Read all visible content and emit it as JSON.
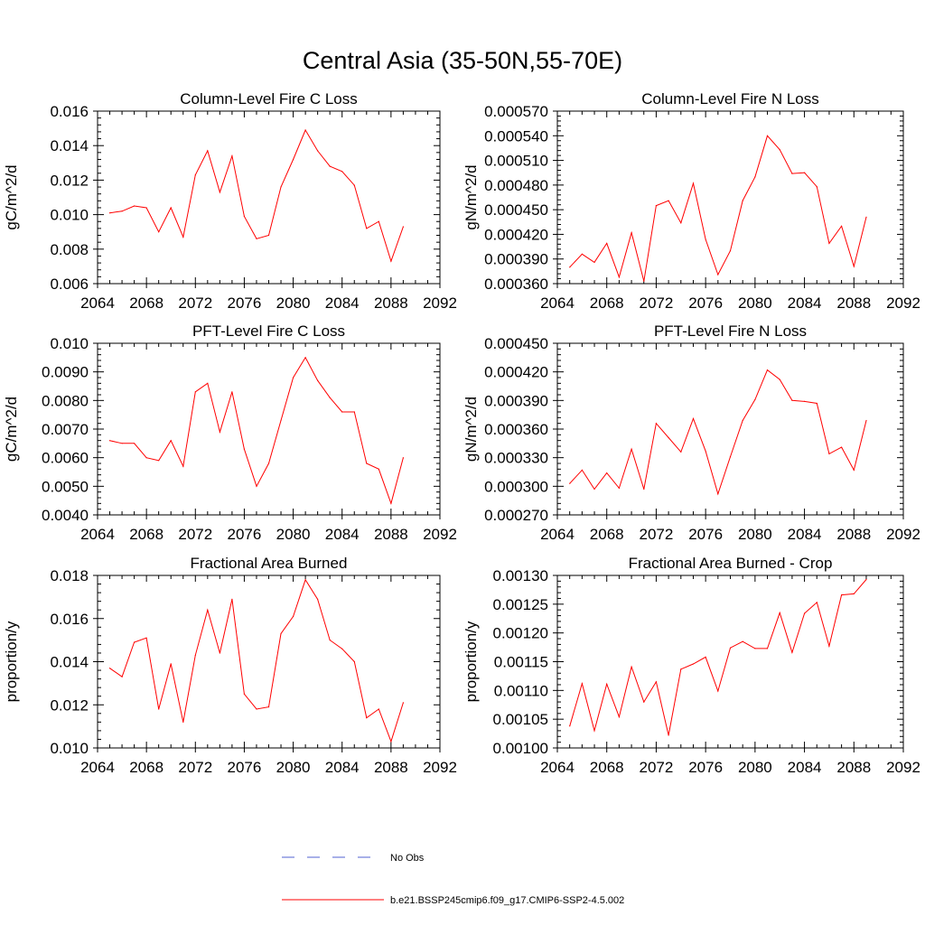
{
  "figure": {
    "title": "Central Asia (35-50N,55-70E)",
    "legend": {
      "obs_label": "No Obs",
      "model_label": "b.e21.BSSP245cmip6.f09_g17.CMIP6-SSP2-4.5.002",
      "obs_color": "#5060d0",
      "model_color": "#ff0000"
    }
  },
  "chart_data": [
    {
      "type": "line",
      "title": "Column-Level Fire C Loss",
      "ylabel": "gC/m^2/d",
      "xlabel": "",
      "xlim": [
        2064,
        2092
      ],
      "xticks": [
        2064,
        2068,
        2072,
        2076,
        2080,
        2084,
        2088,
        2092
      ],
      "ylim": [
        0.006,
        0.016
      ],
      "yticks": [
        "0.006",
        "0.008",
        "0.010",
        "0.012",
        "0.014",
        "0.016"
      ],
      "x": [
        2065,
        2066,
        2067,
        2068,
        2069,
        2070,
        2071,
        2072,
        2073,
        2074,
        2075,
        2076,
        2077,
        2078,
        2079,
        2080,
        2081,
        2082,
        2083,
        2084,
        2085,
        2086,
        2087,
        2088,
        2089
      ],
      "series": [
        {
          "name": "b.e21.BSSP245cmip6.f09_g17.CMIP6-SSP2-4.5.002",
          "values": [
            0.0101,
            0.0102,
            0.0105,
            0.0104,
            0.009,
            0.0104,
            0.0087,
            0.0123,
            0.0137,
            0.0113,
            0.0134,
            0.0099,
            0.0086,
            0.0088,
            0.0116,
            0.0132,
            0.0149,
            0.0137,
            0.0128,
            0.0125,
            0.0117,
            0.0092,
            0.0096,
            0.0073,
            0.0093
          ]
        }
      ]
    },
    {
      "type": "line",
      "title": "Column-Level Fire N Loss",
      "ylabel": "gN/m^2/d",
      "xlabel": "",
      "xlim": [
        2064,
        2092
      ],
      "xticks": [
        2064,
        2068,
        2072,
        2076,
        2080,
        2084,
        2088,
        2092
      ],
      "ylim": [
        0.00036,
        0.00057
      ],
      "yticks": [
        "0.000360",
        "0.000390",
        "0.000420",
        "0.000450",
        "0.000480",
        "0.000510",
        "0.000540",
        "0.000570"
      ],
      "x": [
        2065,
        2066,
        2067,
        2068,
        2069,
        2070,
        2071,
        2072,
        2073,
        2074,
        2075,
        2076,
        2077,
        2078,
        2079,
        2080,
        2081,
        2082,
        2083,
        2084,
        2085,
        2086,
        2087,
        2088,
        2089
      ],
      "series": [
        {
          "name": "b.e21.BSSP245cmip6.f09_g17.CMIP6-SSP2-4.5.002",
          "values": [
            0.00038,
            0.000396,
            0.000386,
            0.000409,
            0.000368,
            0.000422,
            0.000363,
            0.000455,
            0.000461,
            0.000434,
            0.000482,
            0.000414,
            0.000371,
            0.0004,
            0.000461,
            0.00049,
            0.00054,
            0.000523,
            0.000494,
            0.000495,
            0.000478,
            0.000409,
            0.00043,
            0.000381,
            0.000441
          ]
        }
      ]
    },
    {
      "type": "line",
      "title": "PFT-Level Fire C Loss",
      "ylabel": "gC/m^2/d",
      "xlabel": "",
      "xlim": [
        2064,
        2092
      ],
      "xticks": [
        2064,
        2068,
        2072,
        2076,
        2080,
        2084,
        2088,
        2092
      ],
      "ylim": [
        0.004,
        0.01
      ],
      "yticks": [
        "0.0040",
        "0.0050",
        "0.0060",
        "0.0070",
        "0.0080",
        "0.0090",
        "0.010"
      ],
      "x": [
        2065,
        2066,
        2067,
        2068,
        2069,
        2070,
        2071,
        2072,
        2073,
        2074,
        2075,
        2076,
        2077,
        2078,
        2079,
        2080,
        2081,
        2082,
        2083,
        2084,
        2085,
        2086,
        2087,
        2088,
        2089
      ],
      "series": [
        {
          "name": "b.e21.BSSP245cmip6.f09_g17.CMIP6-SSP2-4.5.002",
          "values": [
            0.0066,
            0.0065,
            0.0065,
            0.006,
            0.0059,
            0.0066,
            0.0057,
            0.0083,
            0.0086,
            0.0069,
            0.0083,
            0.0063,
            0.005,
            0.0058,
            0.0073,
            0.0088,
            0.0095,
            0.0087,
            0.0081,
            0.0076,
            0.0076,
            0.0058,
            0.0056,
            0.0044,
            0.006
          ]
        }
      ]
    },
    {
      "type": "line",
      "title": "PFT-Level Fire N Loss",
      "ylabel": "gN/m^2/d",
      "xlabel": "",
      "xlim": [
        2064,
        2092
      ],
      "xticks": [
        2064,
        2068,
        2072,
        2076,
        2080,
        2084,
        2088,
        2092
      ],
      "ylim": [
        0.00027,
        0.00045
      ],
      "yticks": [
        "0.000270",
        "0.000300",
        "0.000330",
        "0.000360",
        "0.000390",
        "0.000420",
        "0.000450"
      ],
      "x": [
        2065,
        2066,
        2067,
        2068,
        2069,
        2070,
        2071,
        2072,
        2073,
        2074,
        2075,
        2076,
        2077,
        2078,
        2079,
        2080,
        2081,
        2082,
        2083,
        2084,
        2085,
        2086,
        2087,
        2088,
        2089
      ],
      "series": [
        {
          "name": "b.e21.BSSP245cmip6.f09_g17.CMIP6-SSP2-4.5.002",
          "values": [
            0.000303,
            0.000317,
            0.000297,
            0.000314,
            0.000298,
            0.000339,
            0.000297,
            0.000366,
            0.000351,
            0.000336,
            0.000371,
            0.000337,
            0.000292,
            0.000331,
            0.000369,
            0.000391,
            0.000422,
            0.000412,
            0.00039,
            0.000389,
            0.000387,
            0.000334,
            0.000341,
            0.000317,
            0.000369
          ]
        }
      ]
    },
    {
      "type": "line",
      "title": "Fractional Area Burned",
      "ylabel": "proportion/y",
      "xlabel": "",
      "xlim": [
        2064,
        2092
      ],
      "xticks": [
        2064,
        2068,
        2072,
        2076,
        2080,
        2084,
        2088,
        2092
      ],
      "ylim": [
        0.01,
        0.018
      ],
      "yticks": [
        "0.010",
        "0.012",
        "0.014",
        "0.016",
        "0.018"
      ],
      "x": [
        2065,
        2066,
        2067,
        2068,
        2069,
        2070,
        2071,
        2072,
        2073,
        2074,
        2075,
        2076,
        2077,
        2078,
        2079,
        2080,
        2081,
        2082,
        2083,
        2084,
        2085,
        2086,
        2087,
        2088,
        2089
      ],
      "series": [
        {
          "name": "b.e21.BSSP245cmip6.f09_g17.CMIP6-SSP2-4.5.002",
          "values": [
            0.0137,
            0.0133,
            0.0149,
            0.0151,
            0.0118,
            0.0139,
            0.0112,
            0.0143,
            0.0164,
            0.0144,
            0.0169,
            0.0125,
            0.0118,
            0.0119,
            0.0153,
            0.0161,
            0.0178,
            0.0169,
            0.015,
            0.0146,
            0.014,
            0.0114,
            0.0118,
            0.0103,
            0.0121
          ]
        }
      ]
    },
    {
      "type": "line",
      "title": "Fractional Area Burned - Crop",
      "ylabel": "proportion/y",
      "xlabel": "",
      "xlim": [
        2064,
        2092
      ],
      "xticks": [
        2064,
        2068,
        2072,
        2076,
        2080,
        2084,
        2088,
        2092
      ],
      "ylim": [
        0.001,
        0.0013
      ],
      "yticks": [
        "0.00100",
        "0.00105",
        "0.00110",
        "0.00115",
        "0.00120",
        "0.00125",
        "0.00130"
      ],
      "x": [
        2065,
        2066,
        2067,
        2068,
        2069,
        2070,
        2071,
        2072,
        2073,
        2074,
        2075,
        2076,
        2077,
        2078,
        2079,
        2080,
        2081,
        2082,
        2083,
        2084,
        2085,
        2086,
        2087,
        2088,
        2089
      ],
      "series": [
        {
          "name": "b.e21.BSSP245cmip6.f09_g17.CMIP6-SSP2-4.5.002",
          "values": [
            0.001038,
            0.001112,
            0.00103,
            0.001111,
            0.001054,
            0.001141,
            0.00108,
            0.001115,
            0.001022,
            0.001137,
            0.001146,
            0.001158,
            0.001099,
            0.001174,
            0.001185,
            0.001173,
            0.001173,
            0.001235,
            0.001166,
            0.001234,
            0.001253,
            0.001177,
            0.001266,
            0.001268,
            0.001293
          ]
        }
      ]
    }
  ]
}
